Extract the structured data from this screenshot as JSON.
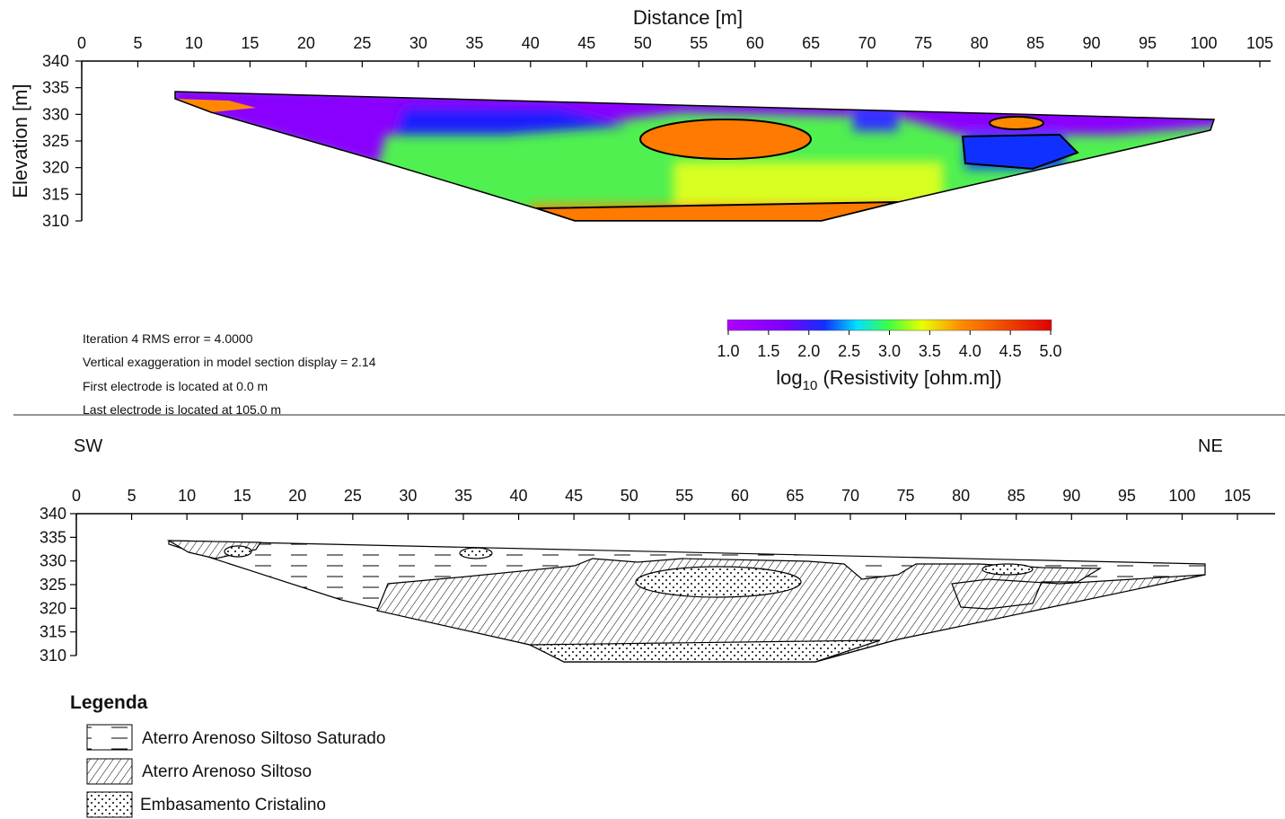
{
  "top_panel": {
    "x_label": "Distance [m]",
    "y_label": "Elevation [m]",
    "xlim": [
      0,
      105
    ],
    "xticks": [
      0,
      5,
      10,
      15,
      20,
      25,
      30,
      35,
      40,
      45,
      50,
      55,
      60,
      65,
      70,
      75,
      80,
      85,
      90,
      95,
      100,
      105
    ],
    "ylim": [
      310,
      340
    ],
    "yticks": [
      340,
      335,
      330,
      325,
      320,
      315,
      310
    ]
  },
  "colorbar": {
    "lim": [
      1,
      5
    ],
    "ticks": [
      {
        "value": 1,
        "label": "1.0"
      },
      1.5,
      {
        "value": 2,
        "label": "2.0"
      },
      2.5,
      {
        "value": 3,
        "label": "3.0"
      },
      3.5,
      {
        "value": 4,
        "label": "4.0"
      },
      4.5,
      {
        "value": 5,
        "label": "5.0"
      }
    ],
    "label_prefix": "log",
    "label_subscript": "10",
    "label_suffix": " (Resistivity [ohm.m])"
  },
  "notes": [
    "Iteration 4 RMS error = 4.0000",
    "Vertical exaggeration in model section display = 2.14",
    "First electrode is located at 0.0 m",
    "Last electrode is located at 105.0 m"
  ],
  "bottom_panel": {
    "left_label": "SW",
    "right_label": "NE",
    "xlim": [
      0,
      105
    ],
    "xticks": [
      0,
      5,
      10,
      15,
      20,
      25,
      30,
      35,
      40,
      45,
      50,
      55,
      60,
      65,
      70,
      75,
      80,
      85,
      90,
      95,
      100,
      105
    ],
    "ylim": [
      310,
      340
    ],
    "yticks": [
      340,
      335,
      330,
      325,
      320,
      315,
      310
    ]
  },
  "legend": {
    "title": "Legenda",
    "items": [
      "Aterro Arenoso Siltoso Saturado",
      "Aterro Arenoso Siltoso",
      "Embasamento Cristalino"
    ]
  }
}
